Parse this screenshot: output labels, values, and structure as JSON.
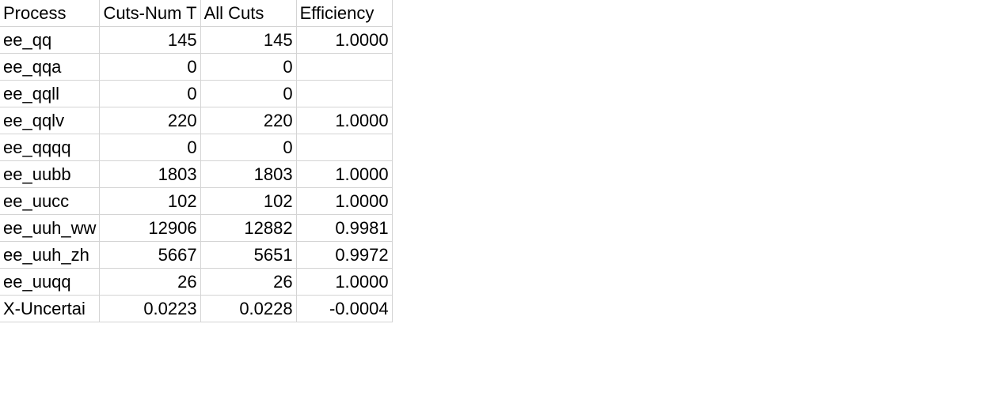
{
  "sheet": {
    "headers": [
      "Process",
      "Cuts-Num T",
      "All Cuts",
      "Efficiency"
    ],
    "rows": [
      [
        "ee_qq",
        "145",
        "145",
        "1.0000"
      ],
      [
        "ee_qqa",
        "0",
        "0",
        ""
      ],
      [
        "ee_qqll",
        "0",
        "0",
        ""
      ],
      [
        "ee_qqlv",
        "220",
        "220",
        "1.0000"
      ],
      [
        "ee_qqqq",
        "0",
        "0",
        ""
      ],
      [
        "ee_uubb",
        "1803",
        "1803",
        "1.0000"
      ],
      [
        "ee_uucc",
        "102",
        "102",
        "1.0000"
      ],
      [
        "ee_uuh_ww",
        "12906",
        "12882",
        "0.9981"
      ],
      [
        "ee_uuh_zh",
        "5667",
        "5651",
        "0.9972"
      ],
      [
        "ee_uuqq",
        "26",
        "26",
        "1.0000"
      ],
      [
        "X-Uncertai",
        "0.0223",
        "0.0228",
        "-0.0004"
      ]
    ]
  }
}
